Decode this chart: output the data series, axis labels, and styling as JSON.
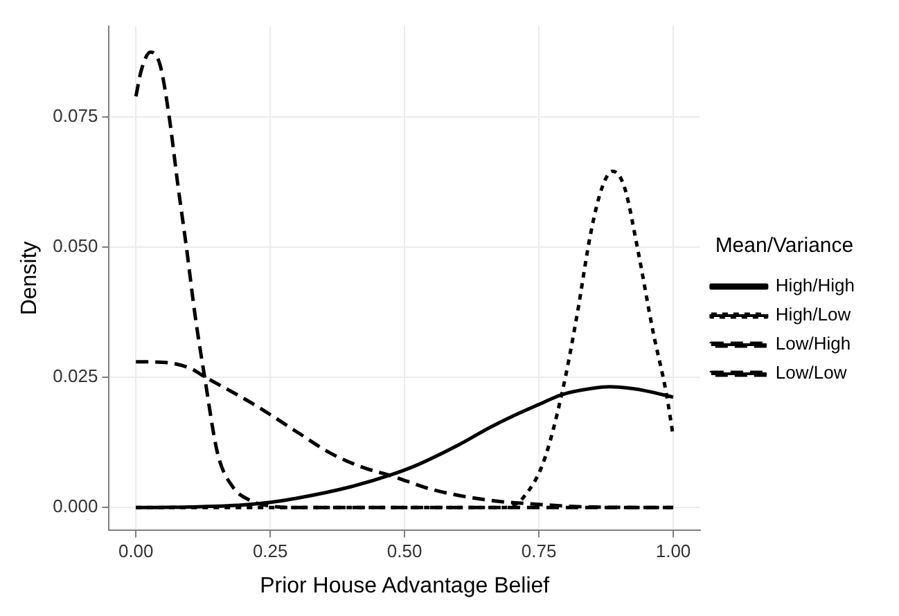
{
  "chart_data": {
    "type": "line",
    "xlabel": "Prior House Advantage Belief",
    "ylabel": "Density",
    "legend_title": "Mean/Variance",
    "legend": "right",
    "grid": true,
    "marker": "none",
    "xlim": [
      -0.05,
      1.05
    ],
    "xticks": [
      {
        "value": 0,
        "label": "0.00"
      },
      {
        "value": 0.25,
        "label": "0.25"
      },
      {
        "value": 0.5,
        "label": "0.50"
      },
      {
        "value": 0.75,
        "label": "0.75"
      },
      {
        "value": 1,
        "label": "1.00"
      }
    ],
    "ylim": [
      -0.0044,
      0.0925
    ],
    "yticks": [
      {
        "value": 0,
        "label": "0.000"
      },
      {
        "value": 0.025,
        "label": "0.025"
      },
      {
        "value": 0.05,
        "label": "0.050"
      },
      {
        "value": 0.075,
        "label": "0.075"
      }
    ],
    "series": [
      {
        "name": "High/High",
        "color": "#000000",
        "line_style": "solid",
        "x": [
          0,
          0.1,
          0.2,
          0.25,
          0.3,
          0.4,
          0.478,
          0.524,
          0.6,
          0.659,
          0.7,
          0.75,
          0.793,
          0.85,
          0.882,
          0.92,
          0.95,
          1.0
        ],
        "values": [
          0,
          0.0001,
          0.0005,
          0.001,
          0.0018,
          0.004,
          0.0064,
          0.0082,
          0.012,
          0.0154,
          0.0175,
          0.0198,
          0.0217,
          0.0229,
          0.0232,
          0.0229,
          0.0224,
          0.0212
        ]
      },
      {
        "name": "High/Low",
        "color": "#000000",
        "line_style": "dotted",
        "x": [
          0,
          0.5,
          0.68,
          0.7,
          0.72,
          0.758,
          0.793,
          0.82,
          0.847,
          0.868,
          0.887,
          0.909,
          0.935,
          0.962,
          0.987,
          1.0
        ],
        "values": [
          0,
          0,
          0,
          0.0003,
          0.0018,
          0.0086,
          0.022,
          0.0364,
          0.053,
          0.0616,
          0.0646,
          0.0616,
          0.049,
          0.034,
          0.022,
          0.0136
        ]
      },
      {
        "name": "Low/High",
        "color": "#000000",
        "line_style": "dashed",
        "x": [
          0,
          0.05,
          0.1,
          0.13,
          0.2,
          0.237,
          0.3,
          0.363,
          0.42,
          0.478,
          0.55,
          0.65,
          0.75,
          0.85,
          1.0
        ],
        "values": [
          0.028,
          0.0279,
          0.0268,
          0.025,
          0.021,
          0.0187,
          0.0145,
          0.0104,
          0.0078,
          0.006,
          0.0035,
          0.0015,
          0.0006,
          0.0001,
          0
        ]
      },
      {
        "name": "Low/Low",
        "color": "#000000",
        "line_style": "dashed",
        "x": [
          0,
          0.01,
          0.027,
          0.045,
          0.062,
          0.078,
          0.094,
          0.11,
          0.128,
          0.152,
          0.18,
          0.21,
          0.25,
          0.3,
          0.5,
          1.0
        ],
        "values": [
          0.079,
          0.084,
          0.0875,
          0.085,
          0.075,
          0.062,
          0.05,
          0.037,
          0.025,
          0.0104,
          0.004,
          0.0015,
          0.0003,
          0,
          0,
          0
        ]
      }
    ]
  }
}
